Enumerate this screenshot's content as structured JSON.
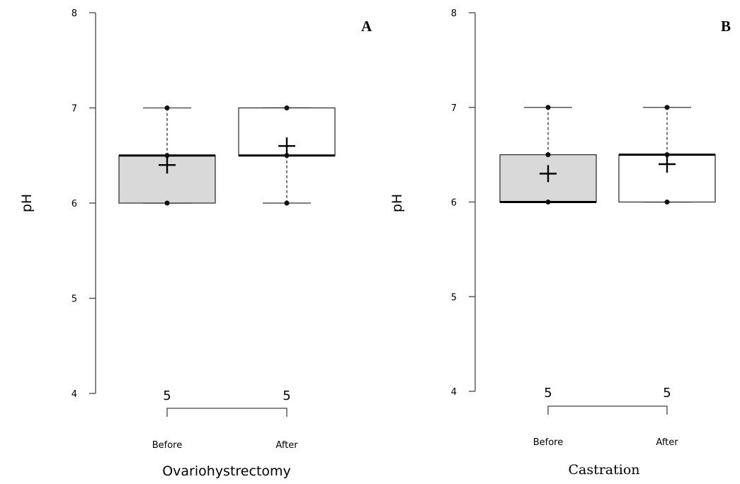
{
  "chart_data": [
    {
      "type": "box",
      "panel_label": "A",
      "xlabel": "Ovariohystrectomy",
      "ylabel": "pH",
      "ylim": [
        4,
        8
      ],
      "yticks": [
        "4",
        "5",
        "6",
        "7",
        "8"
      ],
      "grid": false,
      "categories": [
        "Before",
        "After"
      ],
      "n_labels": [
        "5",
        "5"
      ],
      "boxes": [
        {
          "category": "Before",
          "q1": 6.0,
          "median": 6.5,
          "q3": 6.5,
          "whisker_low": 6.0,
          "whisker_high": 7.0,
          "mean": 6.4,
          "points": [
            6.0,
            6.5,
            7.0
          ],
          "fill": "#d9d9d9"
        },
        {
          "category": "After",
          "q1": 6.5,
          "median": 6.5,
          "q3": 7.0,
          "whisker_low": 6.0,
          "whisker_high": 7.0,
          "mean": 6.6,
          "points": [
            6.0,
            6.5,
            7.0
          ],
          "fill": "#ffffff"
        }
      ]
    },
    {
      "type": "box",
      "panel_label": "B",
      "xlabel": "Castration",
      "ylabel": "pH",
      "ylim": [
        4,
        8
      ],
      "yticks": [
        "4",
        "5",
        "6",
        "7",
        "8"
      ],
      "grid": false,
      "categories": [
        "Before",
        "After"
      ],
      "n_labels": [
        "5",
        "5"
      ],
      "boxes": [
        {
          "category": "Before",
          "q1": 6.0,
          "median": 6.0,
          "q3": 6.5,
          "whisker_low": 6.0,
          "whisker_high": 7.0,
          "mean": 6.3,
          "points": [
            6.0,
            6.5,
            7.0
          ],
          "fill": "#d9d9d9"
        },
        {
          "category": "After",
          "q1": 6.0,
          "median": 6.5,
          "q3": 6.5,
          "whisker_low": 6.0,
          "whisker_high": 7.0,
          "mean": 6.4,
          "points": [
            6.0,
            6.5,
            7.0
          ],
          "fill": "#ffffff"
        }
      ]
    }
  ]
}
